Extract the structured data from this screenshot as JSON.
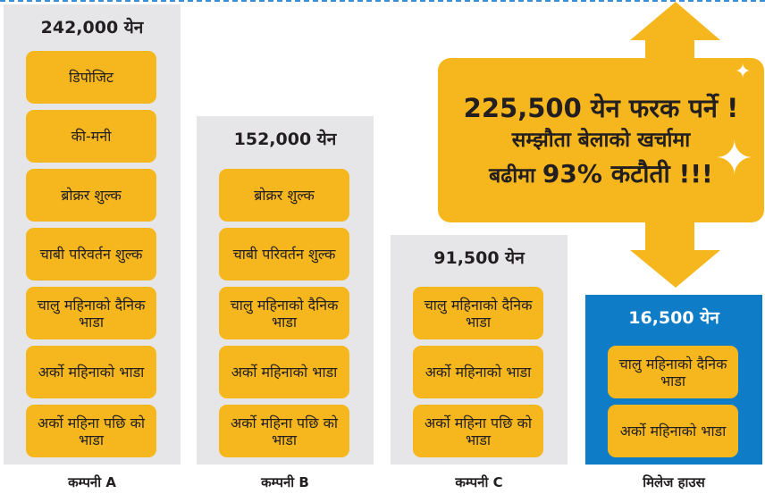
{
  "colors": {
    "yellow": "#f5b71d",
    "gray": "#e6e6e8",
    "blue": "#0f7cc7"
  },
  "columns": [
    {
      "label": "कम्पनी A",
      "total": "242,000 येन",
      "items": [
        "डिपोजिट",
        "की-मनी",
        "ब्रोक्रर शुल्क",
        "चाबी परिवर्तन शुल्क",
        "चालु महिनाको दैनिक भाडा",
        "अर्को महिनाको भाडा",
        "अर्को महिना पछि को भाडा"
      ]
    },
    {
      "label": "कम्पनी B",
      "total": "152,000 येन",
      "items": [
        "ब्रोक्रर शुल्क",
        "चाबी परिवर्तन शुल्क",
        "चालु महिनाको दैनिक भाडा",
        "अर्को महिनाको भाडा",
        "अर्को महिना पछि को भाडा"
      ]
    },
    {
      "label": "कम्पनी C",
      "total": "91,500 येन",
      "items": [
        "चालु महिनाको दैनिक भाडा",
        "अर्को महिनाको भाडा",
        "अर्को महिना पछि को भाडा"
      ]
    },
    {
      "label": "मिलेज हाउस",
      "total": "16,500 येन",
      "items": [
        "चालु महिनाको दैनिक भाडा",
        "अर्को महिनाको भाडा"
      ]
    }
  ],
  "callout": {
    "line1": "225,500 येन फरक पर्ने !",
    "line2": "सम्झौता बेलाको खर्चामा",
    "line3_pre": "बढीमा ",
    "line3_bold": "93% कटौती !!!"
  }
}
